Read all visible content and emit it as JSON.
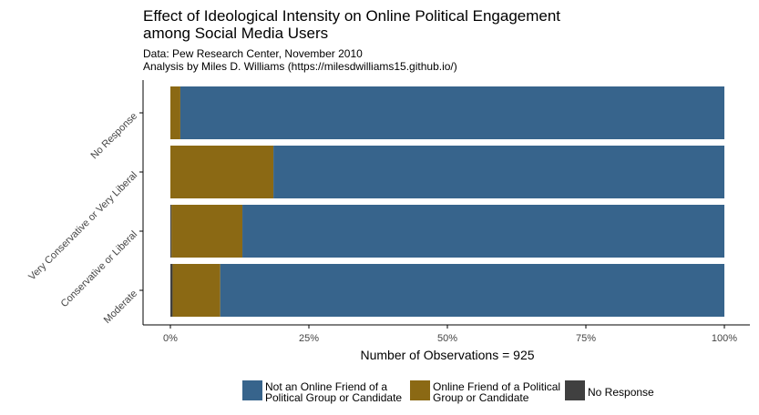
{
  "title_lines": [
    "Effect of Ideological Intensity on Online Political Engagement",
    "among Social Media Users"
  ],
  "subtitle_lines": [
    "Data: Pew Research Center, November 2010",
    "Analysis by Miles D. Williams (https://milesdwilliams15.github.io/)"
  ],
  "chart_data": {
    "type": "bar",
    "orientation": "horizontal",
    "stacked": true,
    "normalized": true,
    "categories": [
      "No Response",
      "Very Conservative or Very Liberal",
      "Conservative or Liberal",
      "Moderate"
    ],
    "series": [
      {
        "name": "No Response",
        "color": "#404040",
        "values": [
          0.0,
          0.0,
          0.2,
          0.4
        ]
      },
      {
        "name": "Online Friend of a Political Group or Candidate",
        "color": "#8b6914",
        "values": [
          1.8,
          18.6,
          12.8,
          8.6
        ]
      },
      {
        "name": "Not an Online Friend of a Political Group or Candidate",
        "color": "#37648c",
        "values": [
          98.2,
          81.4,
          87.0,
          91.0
        ]
      }
    ],
    "x_ticks": [
      "0%",
      "25%",
      "50%",
      "75%",
      "100%"
    ],
    "xlim": [
      0,
      100
    ],
    "xlabel": "Number of Observations = 925",
    "ylabel": "",
    "grid": false,
    "legend": {
      "position": "bottom",
      "entries": [
        {
          "lines": [
            "Not an Online Friend of a",
            "Political Group or Candidate"
          ],
          "color": "#37648c"
        },
        {
          "lines": [
            "Online Friend of a Political",
            "Group or Candidate"
          ],
          "color": "#8b6914"
        },
        {
          "lines": [
            "No Response"
          ],
          "color": "#404040"
        }
      ]
    }
  }
}
